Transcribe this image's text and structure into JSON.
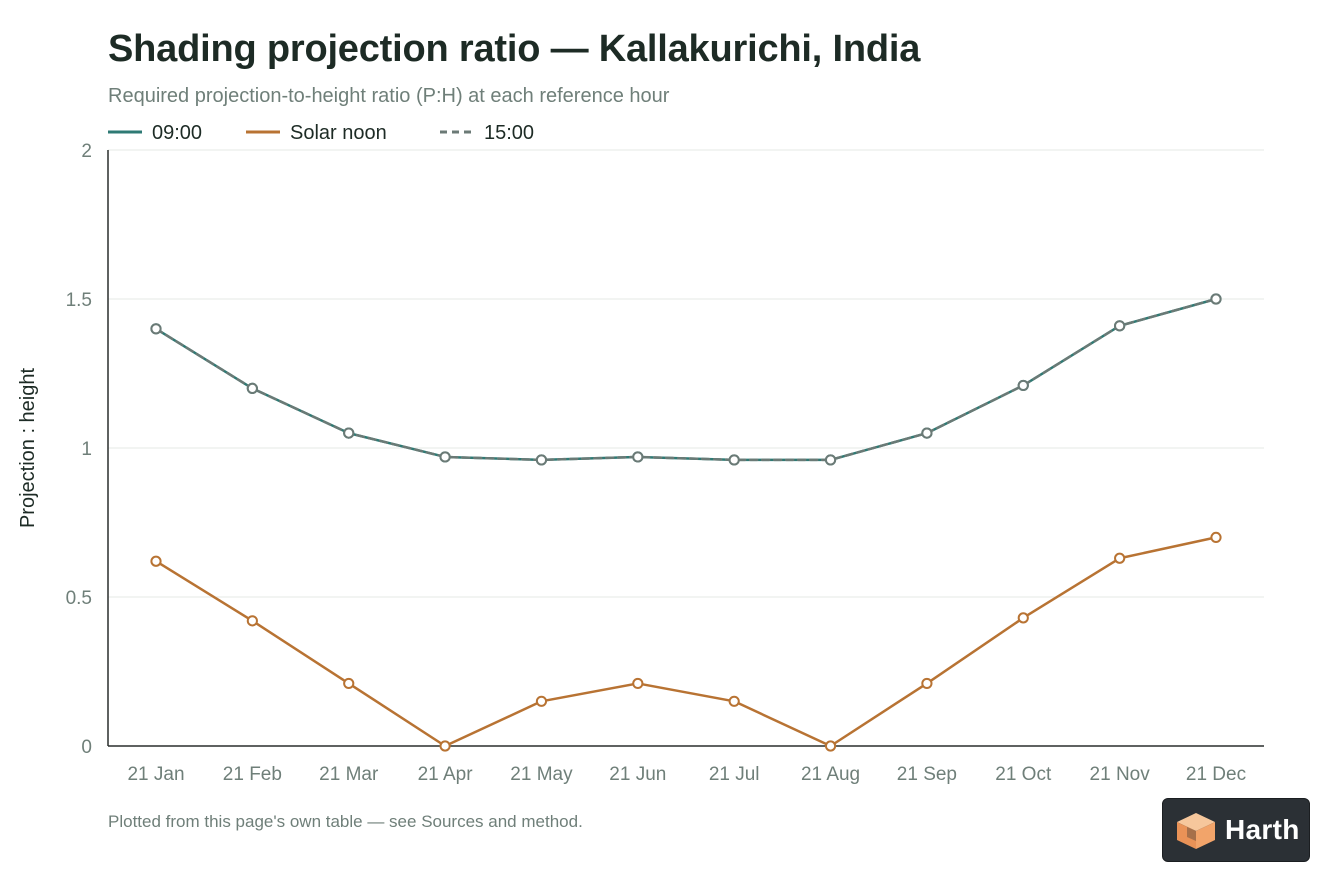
{
  "chart_data": {
    "type": "line",
    "title": "Shading projection ratio — Kallakurichi, India",
    "subtitle": "Required projection-to-height ratio (P:H) at each reference hour",
    "ylabel": "Projection : height",
    "xlabel": "",
    "categories": [
      "21 Jan",
      "21 Feb",
      "21 Mar",
      "21 Apr",
      "21 May",
      "21 Jun",
      "21 Jul",
      "21 Aug",
      "21 Sep",
      "21 Oct",
      "21 Nov",
      "21 Dec"
    ],
    "ylim": [
      0,
      2
    ],
    "yticks": [
      "0",
      "0.5",
      "1",
      "1.5",
      "2"
    ],
    "ytick_values": [
      0,
      0.5,
      1,
      1.5,
      2
    ],
    "grid": true,
    "legend_position": "top-left",
    "series": [
      {
        "name": "09:00",
        "color": "#2e7a74",
        "dashed": false,
        "values": [
          1.4,
          1.2,
          1.05,
          0.97,
          0.96,
          0.97,
          0.96,
          0.96,
          1.05,
          1.21,
          1.41,
          1.5
        ]
      },
      {
        "name": "Solar noon",
        "color": "#b87333",
        "dashed": false,
        "values": [
          0.62,
          0.42,
          0.21,
          0.0,
          0.15,
          0.21,
          0.15,
          0.0,
          0.21,
          0.43,
          0.63,
          0.7
        ]
      },
      {
        "name": "15:00",
        "color": "#6b7a76",
        "dashed": true,
        "values": [
          1.4,
          1.2,
          1.05,
          0.97,
          0.96,
          0.97,
          0.96,
          0.96,
          1.05,
          1.21,
          1.41,
          1.5
        ]
      }
    ],
    "footnote": "Plotted from this page's own table — see Sources and method."
  },
  "brand": {
    "name": "Harth",
    "logo_icon": "cube-icon",
    "logo_color": "#f2a46a"
  }
}
